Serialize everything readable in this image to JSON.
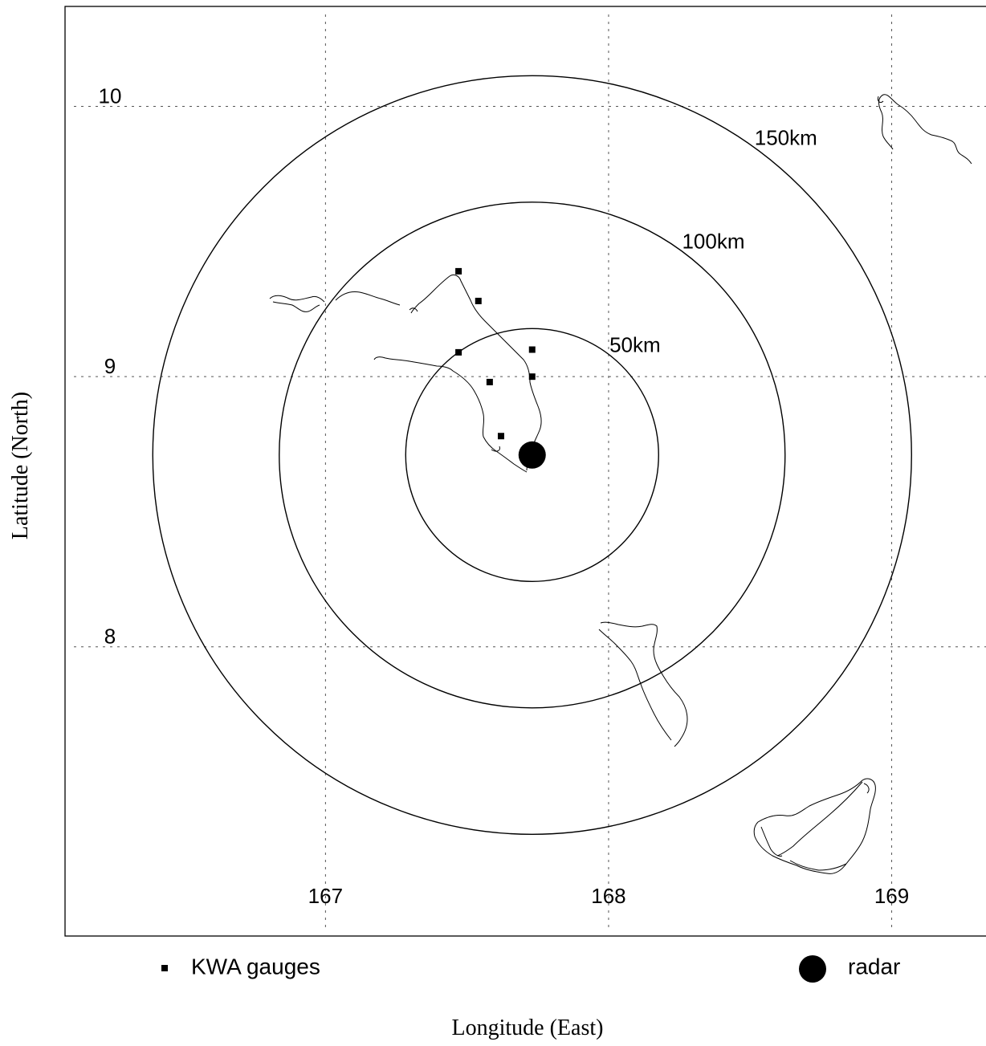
{
  "chart_data": {
    "type": "map",
    "xlabel": "Longitude (East)",
    "ylabel": "Latitude (North)",
    "x_ticks": [
      167,
      168,
      169
    ],
    "y_ticks": [
      10,
      9,
      8
    ],
    "xlim": [
      166.08,
      169.37
    ],
    "ylim": [
      6.93,
      10.37
    ],
    "grid": true,
    "radar": {
      "lon": 167.73,
      "lat": 8.71,
      "label": "radar"
    },
    "range_rings": [
      {
        "radius_km": 50,
        "label": "50km"
      },
      {
        "radius_km": 100,
        "label": "100km"
      },
      {
        "radius_km": 150,
        "label": "150km"
      }
    ],
    "gauges": {
      "label": "KWA gauges",
      "points": [
        {
          "lon": 167.47,
          "lat": 9.39
        },
        {
          "lon": 167.54,
          "lat": 9.28
        },
        {
          "lon": 167.47,
          "lat": 9.09
        },
        {
          "lon": 167.73,
          "lat": 9.1
        },
        {
          "lon": 167.58,
          "lat": 8.98
        },
        {
          "lon": 167.73,
          "lat": 9.0
        },
        {
          "lon": 167.62,
          "lat": 8.78
        }
      ]
    }
  }
}
